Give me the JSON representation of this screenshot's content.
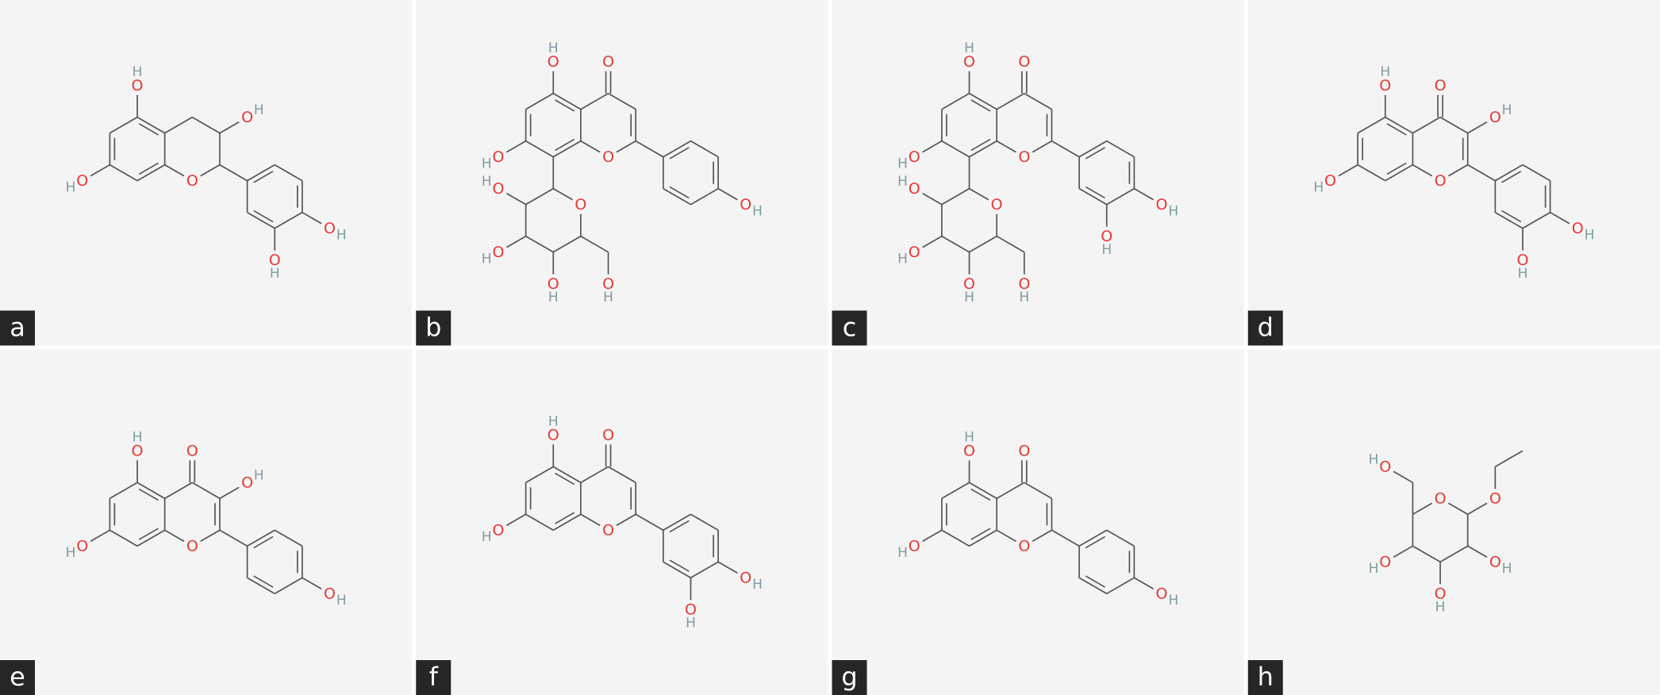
{
  "panels": [
    {
      "label": "a",
      "atoms": [
        "O",
        "O",
        "H",
        "O",
        "H",
        "O",
        "H",
        "O",
        "H",
        "O",
        "H"
      ]
    },
    {
      "label": "b",
      "atoms": [
        "O",
        "O",
        "O",
        "H",
        "O",
        "H",
        "O",
        "H",
        "O",
        "O",
        "H",
        "O",
        "H",
        "O",
        "H",
        "O",
        "H"
      ]
    },
    {
      "label": "c",
      "atoms": [
        "O",
        "O",
        "O",
        "H",
        "O",
        "H",
        "O",
        "H",
        "O",
        "H",
        "O",
        "O",
        "H",
        "O",
        "H",
        "O",
        "H",
        "O",
        "H"
      ]
    },
    {
      "label": "d",
      "atoms": [
        "O",
        "O",
        "O",
        "H",
        "O",
        "H",
        "O",
        "H",
        "O",
        "H",
        "O",
        "H"
      ]
    },
    {
      "label": "e",
      "atoms": [
        "O",
        "O",
        "O",
        "H",
        "O",
        "H",
        "O",
        "H",
        "O",
        "H"
      ]
    },
    {
      "label": "f",
      "atoms": [
        "O",
        "O",
        "O",
        "H",
        "O",
        "H",
        "O",
        "H",
        "O",
        "H"
      ]
    },
    {
      "label": "g",
      "atoms": [
        "O",
        "O",
        "O",
        "H",
        "O",
        "H",
        "O",
        "H"
      ]
    },
    {
      "label": "h",
      "atoms": [
        "O",
        "O",
        "O",
        "H",
        "O",
        "H",
        "O",
        "H",
        "O",
        "H"
      ]
    }
  ]
}
